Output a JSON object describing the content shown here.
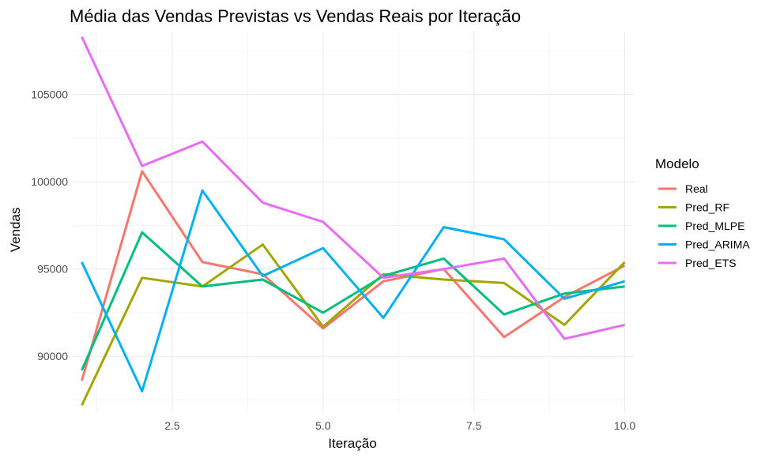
{
  "chart_data": {
    "type": "line",
    "title": "Média das Vendas Previstas vs Vendas Reais por Iteração",
    "xlabel": "Iteração",
    "ylabel": "Vendas",
    "x": [
      1,
      2,
      3,
      4,
      5,
      6,
      7,
      8,
      9,
      10
    ],
    "xlim": [
      0.85,
      10.15
    ],
    "ylim": [
      86800,
      108600
    ],
    "x_ticks": [
      2.5,
      5.0,
      7.5,
      10.0
    ],
    "x_tick_labels": [
      "2.5",
      "5.0",
      "7.5",
      "10.0"
    ],
    "y_ticks": [
      90000,
      95000,
      100000,
      105000
    ],
    "y_tick_labels": [
      "90000",
      "95000",
      "100000",
      "105000"
    ],
    "grid": true,
    "legend": {
      "title": "Modelo",
      "position": "right"
    },
    "series": [
      {
        "name": "Real",
        "color": "#F8766D",
        "values": [
          88600,
          100600,
          95400,
          94700,
          91600,
          94300,
          95000,
          91100,
          93400,
          95200
        ]
      },
      {
        "name": "Pred_RF",
        "color": "#A3A500",
        "values": [
          87200,
          94500,
          94000,
          96400,
          91700,
          94700,
          94400,
          94200,
          91800,
          95400
        ]
      },
      {
        "name": "Pred_MLPE",
        "color": "#00BF7D",
        "values": [
          89200,
          97100,
          94000,
          94400,
          92500,
          94600,
          95600,
          92400,
          93600,
          94000
        ]
      },
      {
        "name": "Pred_ARIMA",
        "color": "#00B0F6",
        "values": [
          95400,
          88000,
          99500,
          94600,
          96200,
          92200,
          97400,
          96700,
          93300,
          94300
        ]
      },
      {
        "name": "Pred_ETS",
        "color": "#E76BF3",
        "values": [
          108300,
          100900,
          102300,
          98800,
          97700,
          94500,
          95000,
          95600,
          91000,
          91800
        ]
      }
    ]
  }
}
